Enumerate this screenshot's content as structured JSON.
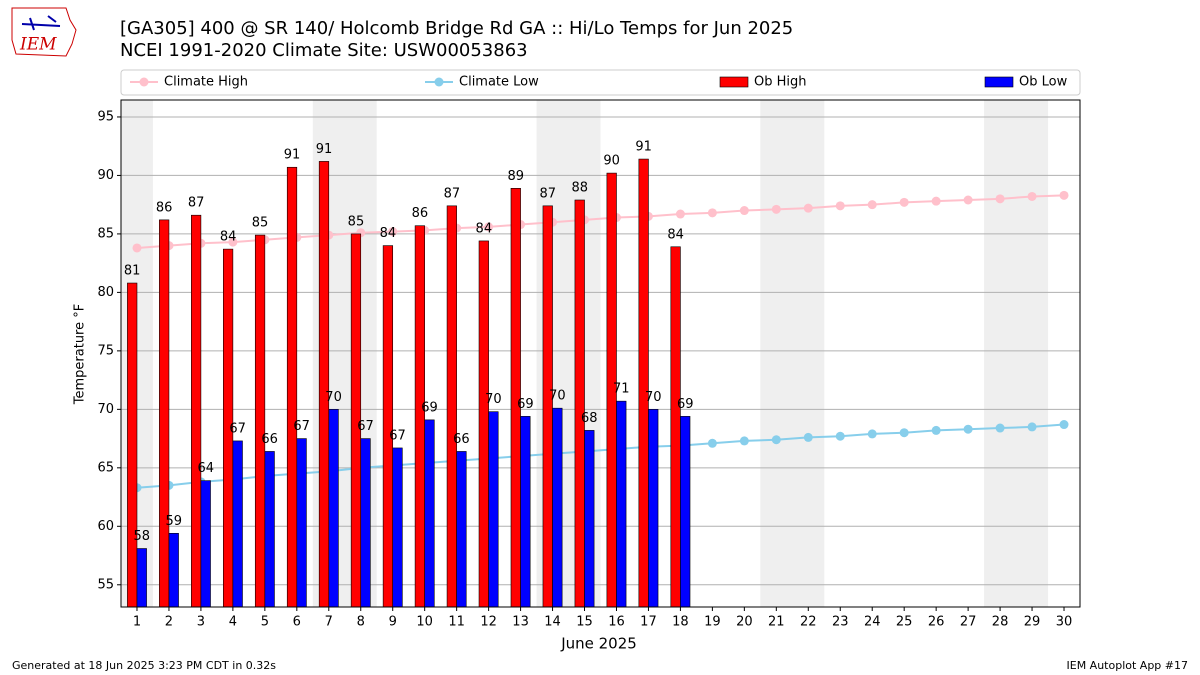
{
  "logo_text": "IEM",
  "footer_left": "Generated at 18 Jun 2025 3:23 PM CDT in 0.32s",
  "footer_right": "IEM Autoplot App #17",
  "chart_data": {
    "type": "bar",
    "title": "[GA305] 400 @ SR 140/ Holcomb Bridge Rd  GA :: Hi/Lo Temps for Jun 2025",
    "subtitle": "NCEI 1991-2020 Climate Site: USW00053863",
    "xlabel": "June 2025",
    "ylabel": "Temperature °F",
    "x": [
      1,
      2,
      3,
      4,
      5,
      6,
      7,
      8,
      9,
      10,
      11,
      12,
      13,
      14,
      15,
      16,
      17,
      18,
      19,
      20,
      21,
      22,
      23,
      24,
      25,
      26,
      27,
      28,
      29,
      30
    ],
    "xlim": [
      0.5,
      30.5
    ],
    "xticks": [
      1,
      2,
      3,
      4,
      5,
      6,
      7,
      8,
      9,
      10,
      11,
      12,
      13,
      14,
      15,
      16,
      17,
      18,
      19,
      20,
      21,
      22,
      23,
      24,
      25,
      26,
      27,
      28,
      29,
      30
    ],
    "ylim": [
      53.1,
      96.45
    ],
    "yticks": [
      55,
      60,
      65,
      70,
      75,
      80,
      85,
      90,
      95
    ],
    "grid": true,
    "highlight_x": [
      [
        0.5,
        1.5
      ],
      [
        6.5,
        8.5
      ],
      [
        13.5,
        15.5
      ],
      [
        20.5,
        22.5
      ],
      [
        27.5,
        29.5
      ]
    ],
    "highlight_color": "#efefef",
    "series": [
      {
        "name": "Climate High",
        "type": "line",
        "color": "#ffc0cb",
        "values": [
          83.8,
          84.0,
          84.2,
          84.3,
          84.5,
          84.7,
          84.9,
          85.1,
          85.2,
          85.3,
          85.5,
          85.6,
          85.8,
          86.0,
          86.2,
          86.4,
          86.5,
          86.7,
          86.8,
          87.0,
          87.1,
          87.2,
          87.4,
          87.5,
          87.7,
          87.8,
          87.9,
          88.0,
          88.2,
          88.3
        ]
      },
      {
        "name": "Climate Low",
        "type": "line",
        "color": "#87ceeb",
        "values": [
          63.3,
          63.5,
          63.8,
          64.0,
          64.3,
          64.5,
          64.7,
          65.0,
          65.2,
          65.4,
          65.6,
          65.8,
          66.0,
          66.2,
          66.4,
          66.6,
          66.8,
          66.9,
          67.1,
          67.3,
          67.4,
          67.6,
          67.7,
          67.9,
          68.0,
          68.2,
          68.3,
          68.4,
          68.5,
          68.7
        ]
      },
      {
        "name": "Ob High",
        "type": "bar",
        "color": "#ff0000",
        "offset": -0.15,
        "values": [
          80.8,
          86.2,
          86.6,
          83.7,
          84.9,
          90.7,
          91.2,
          85.0,
          84.0,
          85.7,
          87.4,
          84.4,
          88.9,
          87.4,
          87.9,
          90.2,
          91.4,
          83.9,
          null,
          null,
          null,
          null,
          null,
          null,
          null,
          null,
          null,
          null,
          null,
          null
        ],
        "value_labels": [
          "81",
          "86",
          "87",
          "84",
          "85",
          "91",
          "91",
          "85",
          "84",
          "86",
          "87",
          "84",
          "89",
          "87",
          "88",
          "90",
          "91",
          "84",
          null,
          null,
          null,
          null,
          null,
          null,
          null,
          null,
          null,
          null,
          null,
          null
        ]
      },
      {
        "name": "Ob Low",
        "type": "bar",
        "color": "#0000ff",
        "offset": 0.15,
        "values": [
          58.1,
          59.4,
          63.9,
          67.3,
          66.4,
          67.5,
          70.0,
          67.5,
          66.7,
          69.1,
          66.4,
          69.8,
          69.4,
          70.1,
          68.2,
          70.7,
          70.0,
          69.4,
          null,
          null,
          null,
          null,
          null,
          null,
          null,
          null,
          null,
          null,
          null,
          null
        ],
        "value_labels": [
          "58",
          "59",
          "64",
          "67",
          "66",
          "67",
          "70",
          "67",
          "67",
          "69",
          "66",
          "70",
          "69",
          "70",
          "68",
          "71",
          "70",
          "69",
          null,
          null,
          null,
          null,
          null,
          null,
          null,
          null,
          null,
          null,
          null,
          null
        ]
      }
    ],
    "bar_width": 0.3
  }
}
